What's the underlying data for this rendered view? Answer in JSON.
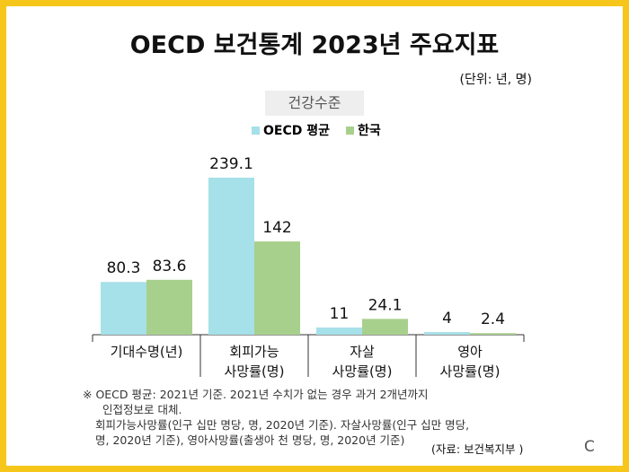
{
  "title": "OECD 보건통계 2023년 주요지표",
  "unit": "(단위: 년, 명)",
  "subtitle": "건강수준",
  "colors": {
    "oecd": "#A6E0E8",
    "korea": "#A8D08D",
    "border": "#F6C61A"
  },
  "chart_data": {
    "type": "bar",
    "categories": [
      [
        "기대수명(년)"
      ],
      [
        "회피가능",
        "사망률(명)"
      ],
      [
        "자살",
        "사망률(명)"
      ],
      [
        "영아",
        "사망률(명)"
      ]
    ],
    "series": [
      {
        "name": "OECD 평균",
        "values": [
          80.3,
          239.1,
          11,
          4
        ],
        "labels": [
          "80.3",
          "239.1",
          "11",
          "4"
        ]
      },
      {
        "name": "한국",
        "values": [
          83.6,
          142,
          24.1,
          2.4
        ],
        "labels": [
          "83.6",
          "142",
          "24.1",
          "2.4"
        ]
      }
    ],
    "legend": "top",
    "grid": false
  },
  "notes": [
    "※ OECD 평균: 2021년 기준. 2021년 수치가 없는 경우 과거 2개년까지",
    "인접정보로 대체.",
    "회피가능사망률(인구 십만 명당, 명, 2020년 기준). 자살사망률(인구 십만 명당,",
    "명, 2020년 기준), 영아사망률(출생아 천 명당, 명, 2020년 기준)"
  ],
  "source": "(자료: 보건복지부 )",
  "corner_mark": "C"
}
